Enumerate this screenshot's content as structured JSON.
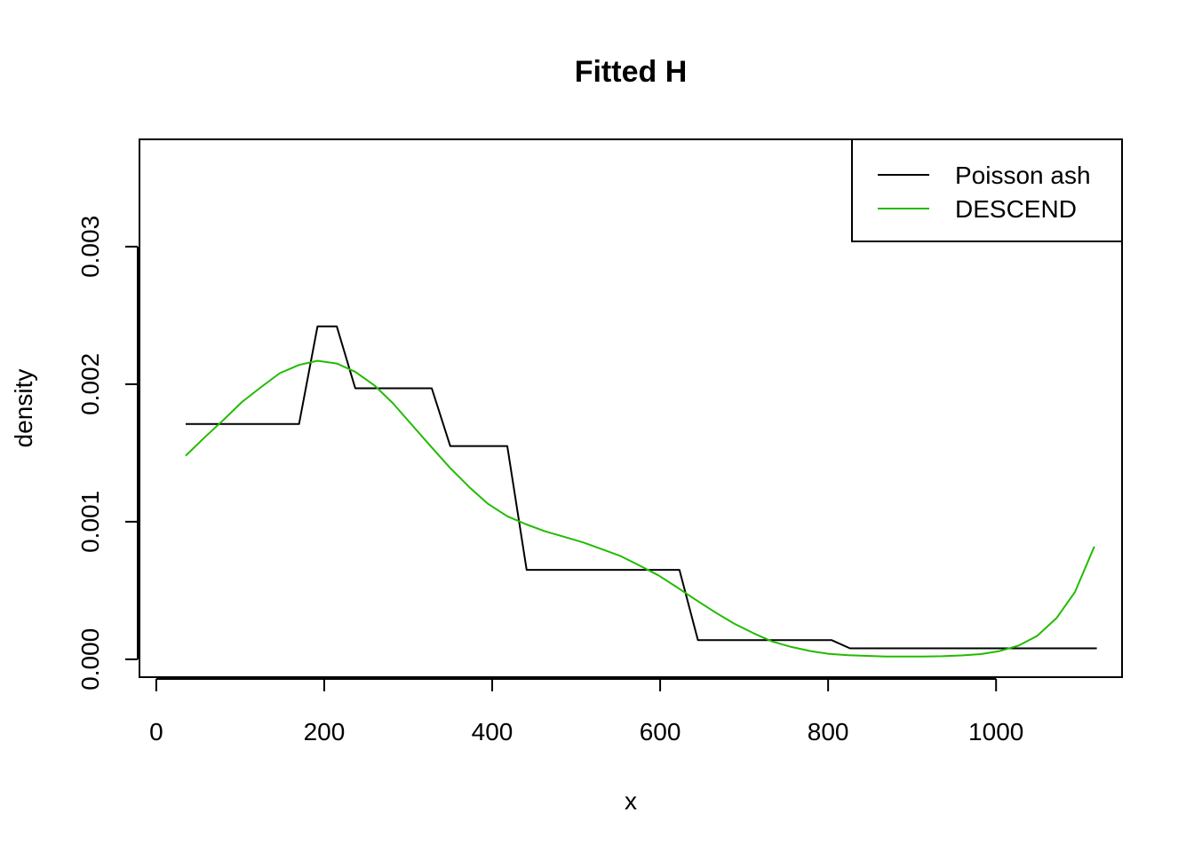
{
  "chart_data": {
    "type": "line",
    "title": "Fitted H",
    "xlabel": "x",
    "ylabel": "density",
    "xlim": [
      -20,
      1150
    ],
    "ylim": [
      -0.00013,
      0.00378
    ],
    "x_ticks": [
      0,
      200,
      400,
      600,
      800,
      1000
    ],
    "x_tick_labels": [
      "0",
      "200",
      "400",
      "600",
      "800",
      "1000"
    ],
    "y_ticks": [
      0,
      0.001,
      0.002,
      0.003
    ],
    "y_tick_labels": [
      "0.000",
      "0.001",
      "0.002",
      "0.003"
    ],
    "grid": false,
    "legend_position": "top-right",
    "series": [
      {
        "name": "Poisson ash",
        "color": "#000000",
        "x": [
          35,
          170,
          192,
          215,
          237,
          328,
          350,
          418,
          441,
          623,
          645,
          804,
          826,
          1120
        ],
        "y": [
          0.00171,
          0.00171,
          0.00242,
          0.00242,
          0.00197,
          0.00197,
          0.00155,
          0.00155,
          0.00065,
          0.00065,
          0.00014,
          0.00014,
          8e-05,
          8e-05
        ]
      },
      {
        "name": "DESCEND",
        "color": "#22bb00",
        "x": [
          35,
          57,
          80,
          102,
          125,
          147,
          170,
          192,
          215,
          237,
          260,
          282,
          305,
          328,
          350,
          373,
          395,
          418,
          441,
          463,
          486,
          508,
          531,
          553,
          576,
          598,
          621,
          643,
          666,
          688,
          711,
          733,
          756,
          779,
          801,
          824,
          846,
          869,
          891,
          914,
          936,
          959,
          982,
          1004,
          1027,
          1049,
          1072,
          1094,
          1117
        ],
        "y": [
          0.00148,
          0.00161,
          0.00174,
          0.00187,
          0.00198,
          0.00208,
          0.00214,
          0.00217,
          0.00215,
          0.00209,
          0.00199,
          0.00186,
          0.0017,
          0.00154,
          0.00139,
          0.00125,
          0.00113,
          0.00104,
          0.00098,
          0.00093,
          0.00089,
          0.00085,
          0.0008,
          0.00075,
          0.00068,
          0.00061,
          0.00052,
          0.00043,
          0.00034,
          0.00026,
          0.00019,
          0.00013,
          9e-05,
          6e-05,
          4e-05,
          3e-05,
          2.5e-05,
          2e-05,
          2e-05,
          2e-05,
          2.2e-05,
          2.8e-05,
          3.8e-05,
          6e-05,
          0.0001,
          0.00017,
          0.0003,
          0.00049,
          0.00082
        ]
      }
    ]
  }
}
